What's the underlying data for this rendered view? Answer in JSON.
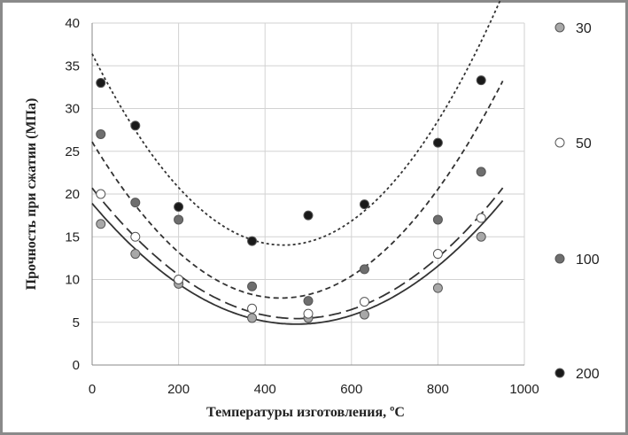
{
  "chart_data": {
    "type": "scatter",
    "title": "",
    "xlabel": "Температуры изготовления, ºС",
    "ylabel": "Прочность при сжатии (МПа)",
    "xlim": [
      0,
      1000
    ],
    "ylim": [
      0,
      40
    ],
    "x_ticks": [
      "0",
      "200",
      "400",
      "600",
      "800",
      "1000"
    ],
    "y_ticks": [
      "0",
      "5",
      "10",
      "15",
      "20",
      "25",
      "30",
      "35",
      "40"
    ],
    "grid": true,
    "legend_position": "right",
    "series": [
      {
        "name": "30",
        "marker_color": "#a8a8a8",
        "line_style": "solid",
        "points": [
          [
            20,
            16.5
          ],
          [
            100,
            13
          ],
          [
            200,
            9.5
          ],
          [
            370,
            5.5
          ],
          [
            500,
            5.5
          ],
          [
            630,
            5.9
          ],
          [
            800,
            9
          ],
          [
            900,
            15
          ]
        ],
        "trend": [
          18.9,
          -0.0598,
          6.33e-05
        ]
      },
      {
        "name": "50",
        "marker_color": "#ffffff",
        "line_style": "long-dash",
        "points": [
          [
            20,
            20
          ],
          [
            100,
            15
          ],
          [
            200,
            10
          ],
          [
            370,
            6.6
          ],
          [
            500,
            6
          ],
          [
            630,
            7.4
          ],
          [
            800,
            13
          ],
          [
            900,
            17.2
          ]
        ],
        "trend": [
          20.7,
          -0.0643,
          6.77e-05
        ]
      },
      {
        "name": "100",
        "marker_color": "#6e6e6e",
        "line_style": "dash",
        "points": [
          [
            20,
            27
          ],
          [
            100,
            19
          ],
          [
            200,
            17
          ],
          [
            370,
            9.2
          ],
          [
            500,
            7.5
          ],
          [
            630,
            11.2
          ],
          [
            800,
            17
          ],
          [
            900,
            22.6
          ]
        ],
        "trend": [
          26.1,
          -0.0838,
          9.61e-05
        ]
      },
      {
        "name": "200",
        "marker_color": "#1a1a1a",
        "line_style": "dot",
        "points": [
          [
            20,
            33
          ],
          [
            100,
            28
          ],
          [
            200,
            18.5
          ],
          [
            370,
            14.5
          ],
          [
            500,
            17.5
          ],
          [
            630,
            18.8
          ],
          [
            800,
            26
          ],
          [
            900,
            33.3
          ]
        ],
        "trend": [
          36.4,
          -0.101,
          0.000114
        ]
      }
    ]
  }
}
